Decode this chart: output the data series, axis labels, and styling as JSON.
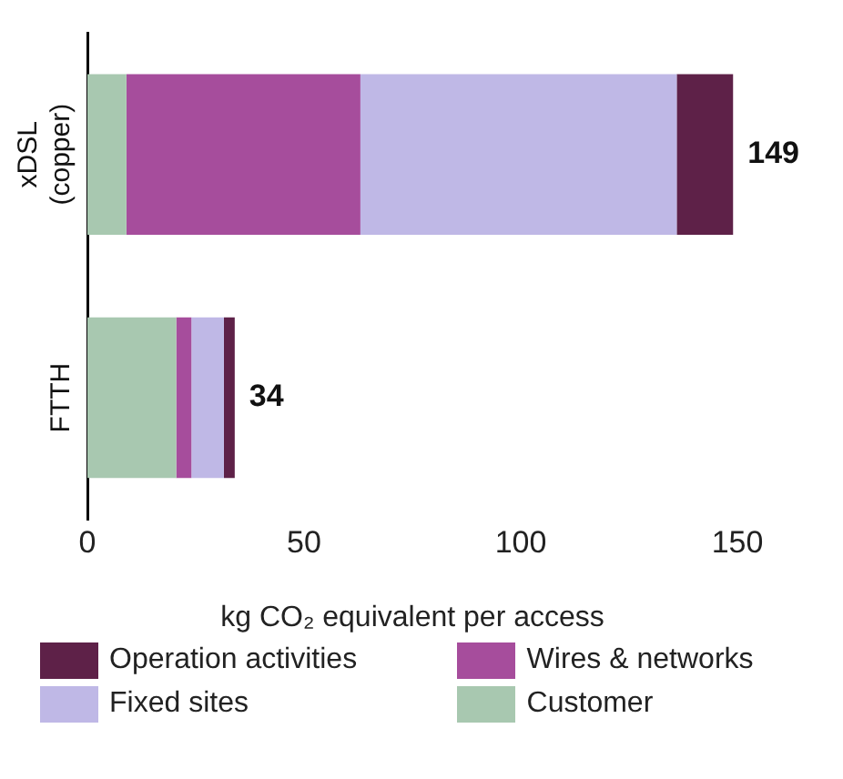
{
  "chart_data": {
    "type": "bar",
    "orientation": "horizontal",
    "stacked": true,
    "xlabel": "kg CO₂ equivalent per access",
    "categories": [
      "xDSL (copper)",
      "FTTH"
    ],
    "series": [
      {
        "name": "Customer",
        "color": "#a8c8b0",
        "values": [
          9,
          20.5
        ]
      },
      {
        "name": "Wires & networks",
        "color": "#a64d9c",
        "values": [
          54,
          3.5
        ]
      },
      {
        "name": "Fixed sites",
        "color": "#bfb8e6",
        "values": [
          73,
          7.5
        ]
      },
      {
        "name": "Operation activities",
        "color": "#5e2148",
        "values": [
          13,
          2.5
        ]
      }
    ],
    "totals": [
      "149",
      "34"
    ],
    "xlim": [
      0,
      150
    ],
    "xticks": [
      0,
      50,
      100,
      150
    ],
    "grid": false,
    "legend": "bottom"
  }
}
